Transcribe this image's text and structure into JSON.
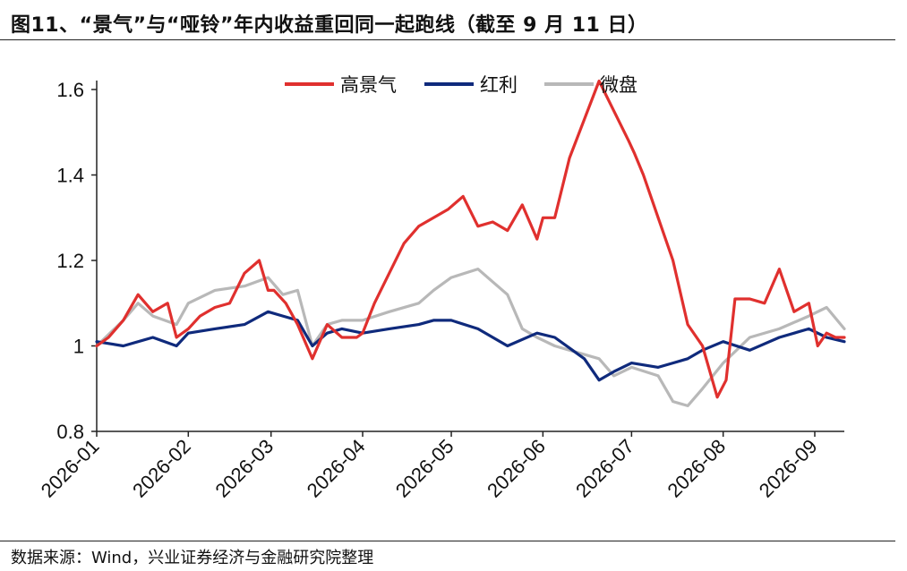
{
  "title": "图11、“景气”与“哑铃”年内收益重回同一起跑线（截至 9 月 11 日）",
  "source": "数据来源：Wind，兴业证券经济与金融研究院整理",
  "chart_data": {
    "type": "line",
    "title": "",
    "xlabel": "",
    "ylabel": "",
    "ylim": [
      0.8,
      1.6
    ],
    "y_ticks": [
      "0.8",
      "1",
      "1.2",
      "1.4",
      "1.6"
    ],
    "y_tick_values": [
      0.8,
      1.0,
      1.2,
      1.4,
      1.6
    ],
    "x_ticks": [
      "2026-01",
      "2026-02",
      "2026-03",
      "2026-04",
      "2026-05",
      "2026-06",
      "2026-07",
      "2026-08",
      "2026-09"
    ],
    "x_range": [
      "2026-01-01",
      "2026-09-11"
    ],
    "grid": false,
    "legend_position": "top-center",
    "series": [
      {
        "name": "高景气",
        "color": "#e0302e",
        "x": [
          "2026-01-01",
          "2026-01-05",
          "2026-01-10",
          "2026-01-15",
          "2026-01-20",
          "2026-01-25",
          "2026-01-28",
          "2026-02-01",
          "2026-02-05",
          "2026-02-10",
          "2026-02-15",
          "2026-02-20",
          "2026-02-25",
          "2026-02-28",
          "2026-03-02",
          "2026-03-06",
          "2026-03-10",
          "2026-03-15",
          "2026-03-20",
          "2026-03-25",
          "2026-03-30",
          "2026-04-01",
          "2026-04-05",
          "2026-04-10",
          "2026-04-15",
          "2026-04-20",
          "2026-04-25",
          "2026-04-30",
          "2026-05-05",
          "2026-05-10",
          "2026-05-15",
          "2026-05-20",
          "2026-05-25",
          "2026-05-30",
          "2026-06-01",
          "2026-06-05",
          "2026-06-10",
          "2026-06-15",
          "2026-06-20",
          "2026-06-25",
          "2026-06-30",
          "2026-07-02",
          "2026-07-05",
          "2026-07-10",
          "2026-07-15",
          "2026-07-20",
          "2026-07-25",
          "2026-07-30",
          "2026-08-02",
          "2026-08-05",
          "2026-08-10",
          "2026-08-15",
          "2026-08-20",
          "2026-08-25",
          "2026-08-30",
          "2026-09-02",
          "2026-09-05",
          "2026-09-08",
          "2026-09-11"
        ],
        "values": [
          1.0,
          1.02,
          1.06,
          1.12,
          1.08,
          1.1,
          1.02,
          1.04,
          1.07,
          1.09,
          1.1,
          1.17,
          1.2,
          1.13,
          1.13,
          1.1,
          1.05,
          0.97,
          1.05,
          1.02,
          1.02,
          1.03,
          1.1,
          1.17,
          1.24,
          1.28,
          1.3,
          1.32,
          1.35,
          1.28,
          1.29,
          1.27,
          1.33,
          1.25,
          1.3,
          1.3,
          1.44,
          1.53,
          1.62,
          1.55,
          1.48,
          1.45,
          1.4,
          1.3,
          1.2,
          1.05,
          1.0,
          0.88,
          0.92,
          1.11,
          1.11,
          1.1,
          1.18,
          1.08,
          1.1,
          1.0,
          1.03,
          1.02,
          1.02
        ]
      },
      {
        "name": "红利",
        "color": "#0f2a7c",
        "x": [
          "2026-01-01",
          "2026-01-10",
          "2026-01-20",
          "2026-01-28",
          "2026-02-01",
          "2026-02-10",
          "2026-02-20",
          "2026-02-28",
          "2026-03-05",
          "2026-03-10",
          "2026-03-15",
          "2026-03-20",
          "2026-03-25",
          "2026-04-01",
          "2026-04-10",
          "2026-04-20",
          "2026-04-25",
          "2026-05-01",
          "2026-05-10",
          "2026-05-20",
          "2026-05-30",
          "2026-06-05",
          "2026-06-15",
          "2026-06-20",
          "2026-06-25",
          "2026-07-01",
          "2026-07-10",
          "2026-07-15",
          "2026-07-20",
          "2026-07-25",
          "2026-08-01",
          "2026-08-10",
          "2026-08-20",
          "2026-08-30",
          "2026-09-05",
          "2026-09-11"
        ],
        "values": [
          1.01,
          1.0,
          1.02,
          1.0,
          1.03,
          1.04,
          1.05,
          1.08,
          1.07,
          1.06,
          1.0,
          1.03,
          1.04,
          1.03,
          1.04,
          1.05,
          1.06,
          1.06,
          1.04,
          1.0,
          1.03,
          1.02,
          0.97,
          0.92,
          0.94,
          0.96,
          0.95,
          0.96,
          0.97,
          0.99,
          1.01,
          0.99,
          1.02,
          1.04,
          1.02,
          1.01
        ]
      },
      {
        "name": "微盘",
        "color": "#b8b8b8",
        "x": [
          "2026-01-01",
          "2026-01-10",
          "2026-01-15",
          "2026-01-20",
          "2026-01-28",
          "2026-02-01",
          "2026-02-10",
          "2026-02-20",
          "2026-02-28",
          "2026-03-05",
          "2026-03-10",
          "2026-03-15",
          "2026-03-20",
          "2026-03-25",
          "2026-04-01",
          "2026-04-10",
          "2026-04-20",
          "2026-04-25",
          "2026-05-01",
          "2026-05-10",
          "2026-05-15",
          "2026-05-20",
          "2026-05-25",
          "2026-05-30",
          "2026-06-05",
          "2026-06-10",
          "2026-06-20",
          "2026-06-25",
          "2026-07-01",
          "2026-07-10",
          "2026-07-15",
          "2026-07-20",
          "2026-07-25",
          "2026-08-01",
          "2026-08-10",
          "2026-08-20",
          "2026-08-30",
          "2026-09-05",
          "2026-09-11"
        ],
        "values": [
          1.0,
          1.06,
          1.1,
          1.07,
          1.05,
          1.1,
          1.13,
          1.14,
          1.16,
          1.12,
          1.13,
          1.0,
          1.05,
          1.06,
          1.06,
          1.08,
          1.1,
          1.13,
          1.16,
          1.18,
          1.15,
          1.12,
          1.04,
          1.02,
          1.0,
          0.99,
          0.97,
          0.93,
          0.95,
          0.93,
          0.87,
          0.86,
          0.9,
          0.96,
          1.02,
          1.04,
          1.07,
          1.09,
          1.04
        ]
      }
    ]
  }
}
